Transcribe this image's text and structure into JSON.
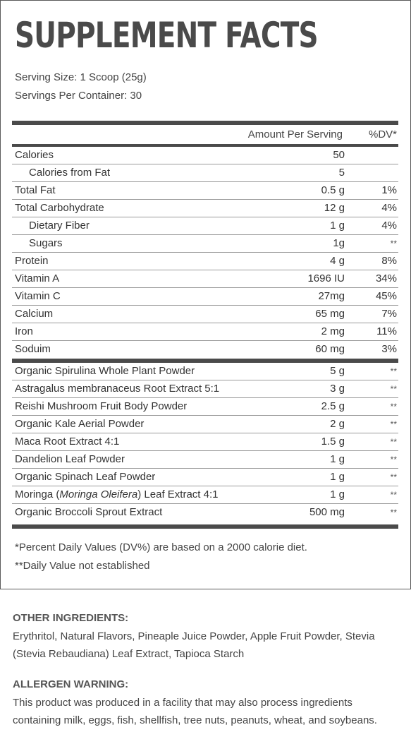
{
  "title": "SUPPLEMENT FACTS",
  "serving_size": "Serving Size: 1 Scoop (25g)",
  "servings_per_container": "Servings Per Container: 30",
  "header": {
    "amount": "Amount Per Serving",
    "dv": "%DV*"
  },
  "nutrients": [
    {
      "name": "Calories",
      "amount": "50",
      "dv": "",
      "indent": false
    },
    {
      "name": "Calories from Fat",
      "amount": "5",
      "dv": "",
      "indent": true
    },
    {
      "name": "Total Fat",
      "amount": "0.5 g",
      "dv": "1%",
      "indent": false
    },
    {
      "name": "Total Carbohydrate",
      "amount": "12 g",
      "dv": "4%",
      "indent": false
    },
    {
      "name": "Dietary Fiber",
      "amount": "1 g",
      "dv": "4%",
      "indent": true
    },
    {
      "name": "Sugars",
      "amount": "1g",
      "dv": "**",
      "indent": true
    },
    {
      "name": "Protein",
      "amount": "4 g",
      "dv": "8%",
      "indent": false
    },
    {
      "name": "Vitamin A",
      "amount": "1696 IU",
      "dv": "34%",
      "indent": false
    },
    {
      "name": "Vitamin C",
      "amount": "27mg",
      "dv": "45%",
      "indent": false
    },
    {
      "name": "Calcium",
      "amount": "65 mg",
      "dv": "7%",
      "indent": false
    },
    {
      "name": "Iron",
      "amount": "2 mg",
      "dv": "11%",
      "indent": false
    },
    {
      "name": "Soduim",
      "amount": "60 mg",
      "dv": "3%",
      "indent": false
    }
  ],
  "blend": [
    {
      "name": "Organic Spirulina Whole Plant Powder",
      "amount": "5 g",
      "dv": "**"
    },
    {
      "name": "Astragalus membranaceus Root Extract 5:1",
      "amount": "3 g",
      "dv": "**"
    },
    {
      "name": "Reishi Mushroom Fruit Body Powder",
      "amount": "2.5 g",
      "dv": "**"
    },
    {
      "name": "Organic Kale Aerial Powder",
      "amount": "2 g",
      "dv": "**"
    },
    {
      "name": "Maca Root Extract 4:1",
      "amount": "1.5 g",
      "dv": "**"
    },
    {
      "name": "Dandelion Leaf Powder",
      "amount": "1 g",
      "dv": "**"
    },
    {
      "name": "Organic Spinach Leaf Powder",
      "amount": "1 g",
      "dv": "**"
    },
    {
      "name": "Moringa (Moringa Oleifera) Leaf Extract 4:1",
      "amount": "1 g",
      "dv": "**"
    },
    {
      "name": "Organic Broccoli Sprout Extract",
      "amount": "500 mg",
      "dv": "**"
    }
  ],
  "footnotes": {
    "percent": "*Percent Daily Values (DV%) are based on a 2000 calorie diet.",
    "not_established": "**Daily Value not established"
  },
  "other_ingredients": {
    "heading": "OTHER INGREDIENTS:",
    "text": "Erythritol, Natural Flavors, Pineaple Juice Powder, Apple Fruit Powder, Stevia (Stevia Rebaudiana) Leaf Extract, Tapioca Starch"
  },
  "allergen_warning": {
    "heading": "ALLERGEN WARNING:",
    "text": "This product was produced in a facility that may also process ingredients containing milk, eggs, fish, shellfish, tree nuts, peanuts, wheat, and soybeans."
  }
}
